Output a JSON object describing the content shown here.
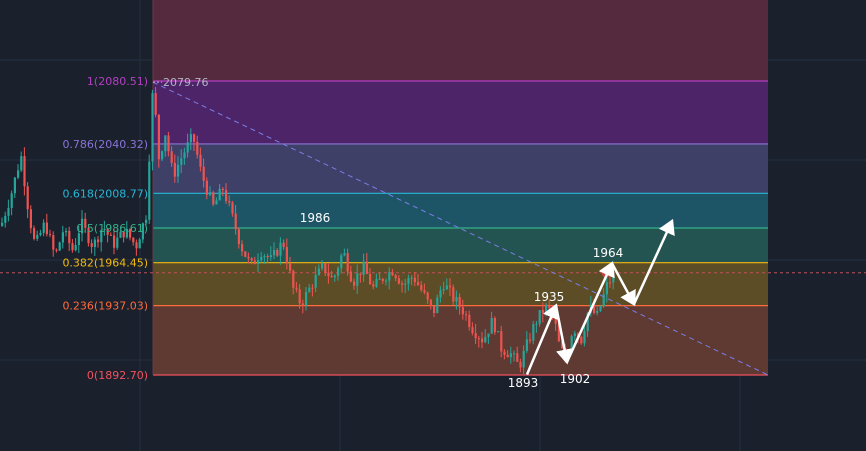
{
  "chart_data": {
    "type": "candlestick-fibonacci",
    "title": "",
    "xlabel": "",
    "ylabel": "",
    "price_range": [
      1860,
      2110
    ],
    "grid": true,
    "fib_levels": [
      {
        "ratio": 1,
        "price": 2080.51,
        "label": "1(2080.51)",
        "color": "#b43fc4",
        "fill": "#4e2468"
      },
      {
        "ratio": 0.786,
        "price": 2040.32,
        "label": "0.786(2040.32)",
        "color": "#8a73d8",
        "fill": "#3f4068"
      },
      {
        "ratio": 0.618,
        "price": 2008.77,
        "label": "0.618(2008.77)",
        "color": "#27b6d6",
        "fill": "#1d5466"
      },
      {
        "ratio": 0.5,
        "price": 1986.61,
        "label": "0.5(1986.61)",
        "color": "#35b18a",
        "fill": "#245452"
      },
      {
        "ratio": 0.382,
        "price": 1964.45,
        "label": "0.382(1964.45)",
        "color": "#f2b90f",
        "fill": "#5c4d27"
      },
      {
        "ratio": 0.236,
        "price": 1937.03,
        "label": "0.236(1937.03)",
        "color": "#ff6a3a",
        "fill": "#5e3a32"
      },
      {
        "ratio": 0,
        "price": 1892.7,
        "label": "0(1892.70)",
        "color": "#f0525e",
        "fill": "#5e3a32"
      }
    ],
    "upper_zone_color": "#55293e",
    "high_marker": {
      "price": 2079.76,
      "label": "2079.76"
    },
    "current_price": 1958,
    "trendline": {
      "from": 2079.76,
      "to": 1892.7
    },
    "annotations": [
      {
        "label": "1986",
        "price": 1986
      },
      {
        "label": "1935",
        "price": 1935
      },
      {
        "label": "1964",
        "price": 1964
      },
      {
        "label": "1893",
        "price": 1893
      },
      {
        "label": "1902",
        "price": 1902
      }
    ],
    "projected_path": [
      1893,
      1937,
      1901,
      1964,
      1938,
      1991
    ],
    "candle_colors": {
      "up": "#26a69a",
      "down": "#ef5350"
    }
  }
}
